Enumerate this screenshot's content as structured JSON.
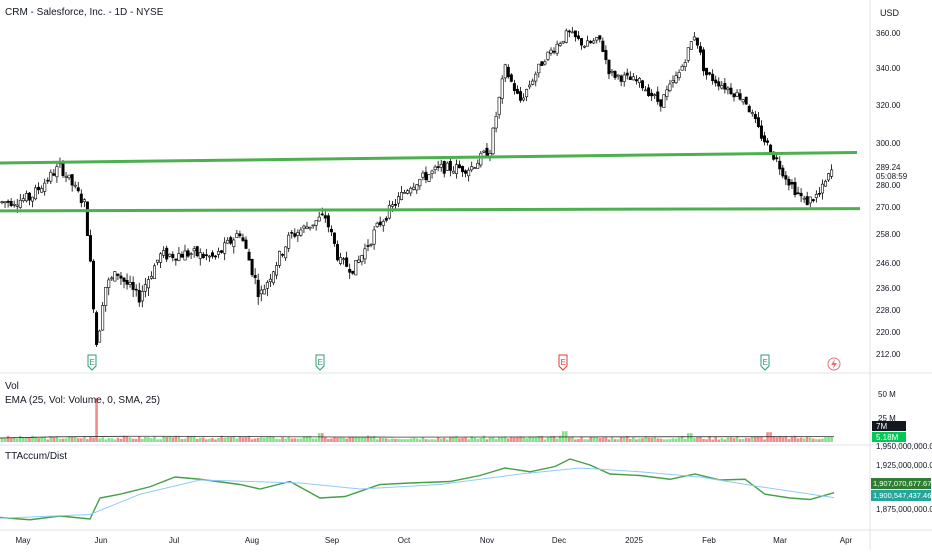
{
  "header": {
    "symbol_line": "CRM - Salesforce, Inc. - 1D - NYSE",
    "currency": "USD"
  },
  "price_axis": {
    "ticks": [
      360,
      340,
      320,
      300,
      280,
      270,
      258,
      246,
      236,
      228,
      220,
      212
    ],
    "tick_labels": [
      "360.00",
      "340.00",
      "320.00",
      "300.00",
      "280.00",
      "270.00",
      "258.00",
      "246.00",
      "236.00",
      "228.00",
      "220.00",
      "212.00"
    ],
    "last_price": "289.24",
    "countdown": "05:08:59"
  },
  "x_axis": {
    "months": [
      "May",
      "Jun",
      "Jul",
      "Aug",
      "Sep",
      "Oct",
      "Nov",
      "Dec",
      "2025",
      "Feb",
      "Mar",
      "Apr"
    ]
  },
  "earnings_markers": {
    "label": "E",
    "icons": [
      "earnings-icon",
      "earnings-icon",
      "earnings-icon",
      "earnings-icon",
      "lightning-icon"
    ]
  },
  "volume_pane": {
    "title": "Vol",
    "ema_label": "EMA (25, Vol: Volume, 0, SMA, 25)",
    "axis_labels": [
      "50 M",
      "25 M"
    ],
    "badge_ema": "7M",
    "badge_volume": "5.18M"
  },
  "accum_pane": {
    "title": "TTAccum/Dist",
    "axis_labels": [
      "1,950,000,000.00",
      "1,925,000,000.00",
      "1,875,000,000.00"
    ],
    "badge_value": "1,907,070,677.67",
    "badge_signal": "1,900,547,437.46"
  },
  "colors": {
    "up": "#26a69a",
    "down": "#000000",
    "trendline": "#4caf50",
    "vol_up": "#81e286",
    "vol_down": "#f28b8b",
    "accum": "#43a047",
    "accum_signal": "#90caf9",
    "earnings_green": "#2e9d6f",
    "earnings_red": "#e53935"
  },
  "chart_data": [
    {
      "type": "candlestick",
      "title": "CRM - Salesforce, Inc. - 1D - NYSE",
      "ylabel": "USD",
      "ylim": [
        205,
        366
      ],
      "trendlines": [
        {
          "from": [
            "May",
            290
          ],
          "to": [
            "Mar",
            295
          ]
        },
        {
          "from": [
            "May",
            268
          ],
          "to": [
            "Mar",
            269
          ]
        }
      ],
      "price_path": [
        {
          "x": "May",
          "close": 276
        },
        {
          "x": "Jun",
          "close": 232
        },
        {
          "x": "Jul",
          "close": 251
        },
        {
          "x": "Aug",
          "close": 244
        },
        {
          "x": "Sep",
          "close": 247
        },
        {
          "x": "Oct",
          "close": 285
        },
        {
          "x": "Nov",
          "close": 340
        },
        {
          "x": "Dec",
          "close": 358
        },
        {
          "x": "2025",
          "close": 335
        },
        {
          "x": "Feb",
          "close": 343
        },
        {
          "x": "Mar",
          "close": 280
        },
        {
          "x": "Apr",
          "close": 289.24
        }
      ],
      "last": 289.24
    },
    {
      "type": "bar",
      "title": "Vol",
      "categories": [
        "May",
        "Jun",
        "Jul",
        "Aug",
        "Sep",
        "Oct",
        "Nov",
        "Dec",
        "2025",
        "Feb",
        "Mar",
        "Apr"
      ],
      "values_million": [
        6,
        45,
        7,
        6,
        7,
        6,
        7,
        10,
        7,
        7,
        8,
        5.18
      ],
      "last_volume": "5.18M",
      "ema": "7M"
    },
    {
      "type": "line",
      "title": "TTAccum/Dist",
      "series": [
        {
          "name": "TTAccum/Dist",
          "x": [
            "May",
            "Jun",
            "Jul",
            "Aug",
            "Sep",
            "Oct",
            "Nov",
            "Dec",
            "2025",
            "Feb",
            "Mar",
            "Apr"
          ],
          "values": [
            1872000000,
            1893000000,
            1930000000,
            1920000000,
            1904000000,
            1915000000,
            1938000000,
            1948000000,
            1930000000,
            1922000000,
            1904000000,
            1907070677.67
          ]
        }
      ],
      "signal_last": 1900547437.46,
      "ylim": [
        1868000000,
        1960000000
      ]
    }
  ]
}
